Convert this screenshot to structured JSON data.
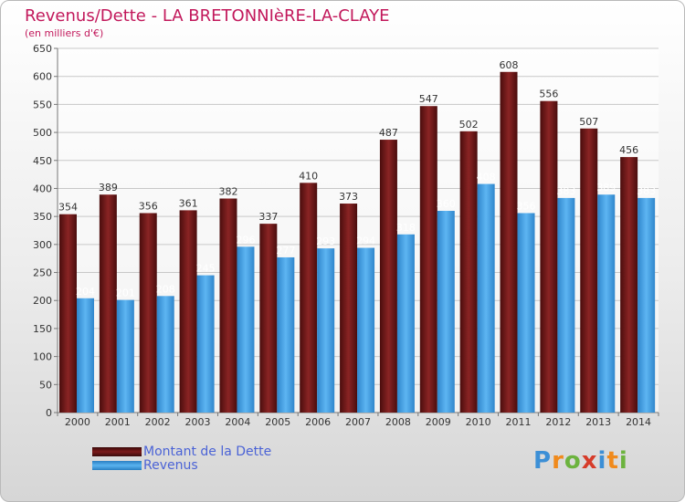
{
  "header": {
    "title": "Revenus/Dette - LA BRETONNIèRE-LA-CLAYE",
    "subtitle": "(en milliers d'€)"
  },
  "chart_data": {
    "type": "bar",
    "categories": [
      "2000",
      "2001",
      "2002",
      "2003",
      "2004",
      "2005",
      "2006",
      "2007",
      "2008",
      "2009",
      "2010",
      "2011",
      "2012",
      "2013",
      "2014"
    ],
    "series": [
      {
        "name": "Montant de la Dette",
        "color": "#7b1a1a",
        "values": [
          354,
          389,
          356,
          361,
          382,
          337,
          410,
          373,
          487,
          547,
          502,
          608,
          556,
          507,
          456
        ]
      },
      {
        "name": "Revenus",
        "color": "#4aa3e6",
        "values": [
          204,
          201,
          208,
          245,
          296,
          277,
          293,
          294,
          318,
          360,
          408,
          356,
          383,
          389,
          383
        ]
      }
    ],
    "ylim": [
      0,
      650
    ],
    "yticks": [
      0,
      50,
      100,
      150,
      200,
      250,
      300,
      350,
      400,
      450,
      500,
      550,
      600,
      650
    ],
    "grid": true,
    "legend": "bottom-left"
  },
  "brand": {
    "letters": [
      "P",
      "r",
      "o",
      "x",
      "i",
      "t",
      "i"
    ],
    "colors": [
      "#3c8fd6",
      "#f08a1c",
      "#6cb33e",
      "#d63c2a",
      "#3c8fd6",
      "#f08a1c",
      "#6cb33e"
    ]
  }
}
